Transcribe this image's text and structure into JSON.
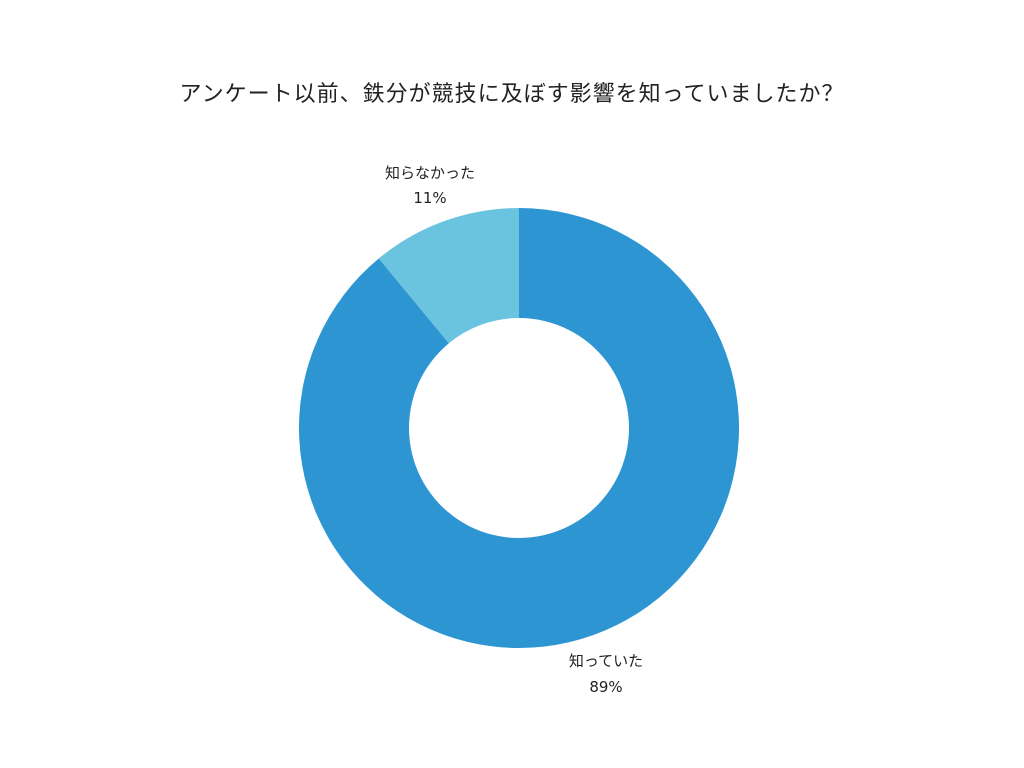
{
  "chart_data": {
    "type": "pie",
    "donut": true,
    "title": "アンケート以前、鉄分が競技に及ぼす影響を知っていましたか？",
    "slices": [
      {
        "label": "知っていた",
        "value": 89,
        "value_label": "89%",
        "color": "#2e95d3"
      },
      {
        "label": "知らなかった",
        "value": 11,
        "value_label": "11%",
        "color": "#6ac3df"
      }
    ],
    "start": "top",
    "direction": "clockwise",
    "legend": "none"
  }
}
